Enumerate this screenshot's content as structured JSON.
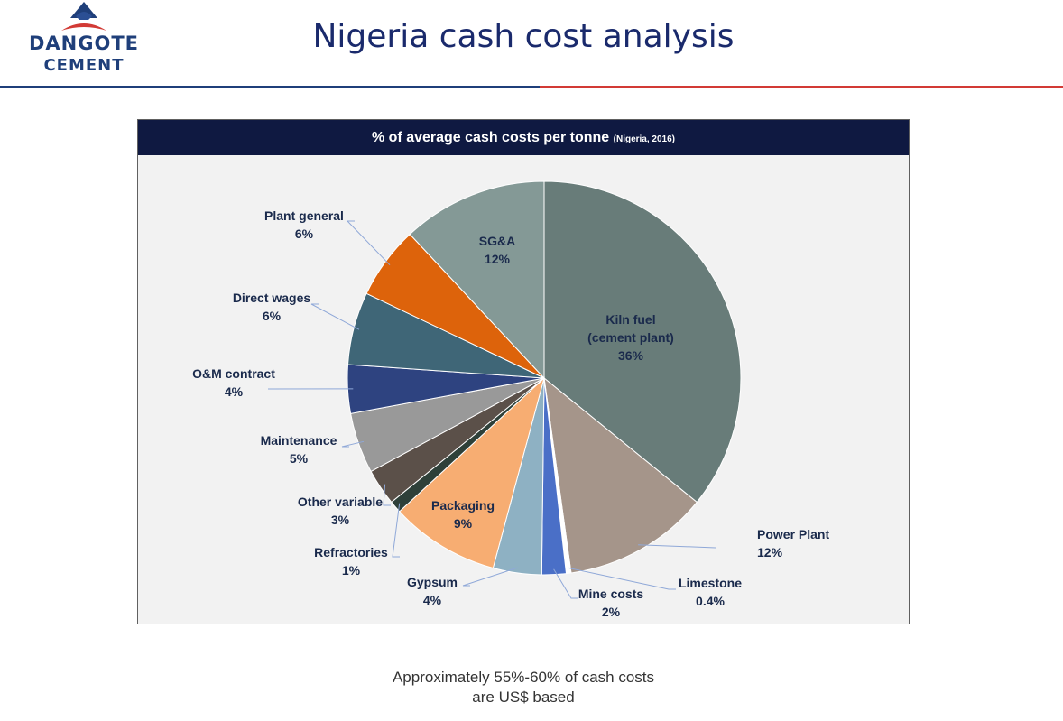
{
  "header": {
    "logo_line1": "DANGOTE",
    "logo_line2": "CEMENT",
    "title": "Nigeria cash cost analysis"
  },
  "colors": {
    "brand_blue": "#1f3f7a",
    "brand_red": "#d23a35",
    "chart_header_bg": "#0f1941",
    "label_text": "#1a2a4c"
  },
  "chart_data": {
    "type": "pie",
    "title": "% of average cash costs per tonne",
    "subtitle": "(Nigeria, 2016)",
    "slices": [
      {
        "label": "Kiln fuel (cement plant)",
        "value": 36,
        "value_label": "36%",
        "color": "#687c79"
      },
      {
        "label": "Power Plant",
        "value": 12,
        "value_label": "12%",
        "color": "#a5958a"
      },
      {
        "label": "Limestone",
        "value": 0.4,
        "value_label": "0.4%",
        "color": "#ffffff"
      },
      {
        "label": "Mine costs",
        "value": 2,
        "value_label": "2%",
        "color": "#4a6fc7"
      },
      {
        "label": "Gypsum",
        "value": 4,
        "value_label": "4%",
        "color": "#8eb1c3"
      },
      {
        "label": "Packaging",
        "value": 9,
        "value_label": "9%",
        "color": "#f7ad72"
      },
      {
        "label": "Refractories",
        "value": 1,
        "value_label": "1%",
        "color": "#2e4039"
      },
      {
        "label": "Other variable",
        "value": 3,
        "value_label": "3%",
        "color": "#5b5049"
      },
      {
        "label": "Maintenance",
        "value": 5,
        "value_label": "5%",
        "color": "#999999"
      },
      {
        "label": "O&M contract",
        "value": 4,
        "value_label": "4%",
        "color": "#2e4380"
      },
      {
        "label": "Direct wages",
        "value": 6,
        "value_label": "6%",
        "color": "#3f6677"
      },
      {
        "label": "Plant general",
        "value": 6,
        "value_label": "6%",
        "color": "#dd630b"
      },
      {
        "label": "SG&A",
        "value": 12,
        "value_label": "12%",
        "color": "#849996"
      }
    ]
  },
  "footnote": {
    "line1": "Approximately 55%-60% of cash costs",
    "line2": "are US$ based"
  }
}
